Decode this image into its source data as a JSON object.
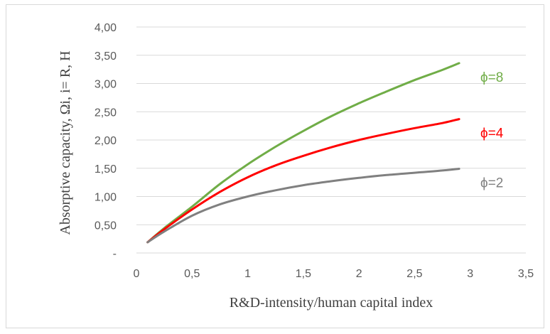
{
  "chart_data": {
    "type": "line",
    "xlabel": "R&D-intensity/human capital index",
    "ylabel": "Absorptive capacity, Ωi, i= R, H",
    "xlim": [
      0,
      3.5
    ],
    "ylim": [
      0,
      4
    ],
    "grid": "horizontal",
    "legend": "inline labels at right end of lines",
    "x_ticks": [
      "0",
      "0,5",
      "1",
      "1,5",
      "2",
      "2,5",
      "3",
      "3,5"
    ],
    "y_ticks": [
      "-",
      "0,50",
      "1,00",
      "1,50",
      "2,00",
      "2,50",
      "3,00",
      "3,50",
      "4,00"
    ],
    "x": [
      0.1,
      0.25,
      0.5,
      0.75,
      1.0,
      1.25,
      1.5,
      1.75,
      2.0,
      2.25,
      2.5,
      2.75,
      2.9
    ],
    "series": [
      {
        "name": "ϕ=8",
        "color": "#70ad47",
        "values": [
          0.19,
          0.44,
          0.82,
          1.22,
          1.57,
          1.88,
          2.16,
          2.42,
          2.65,
          2.86,
          3.06,
          3.24,
          3.36
        ]
      },
      {
        "name": "ϕ=4",
        "color": "#ff0000",
        "values": [
          0.19,
          0.42,
          0.77,
          1.08,
          1.34,
          1.55,
          1.72,
          1.87,
          2.0,
          2.11,
          2.21,
          2.3,
          2.37
        ]
      },
      {
        "name": "ϕ=2",
        "color": "#808080",
        "values": [
          0.19,
          0.38,
          0.66,
          0.86,
          1.0,
          1.11,
          1.2,
          1.27,
          1.33,
          1.38,
          1.42,
          1.46,
          1.49
        ]
      }
    ]
  }
}
